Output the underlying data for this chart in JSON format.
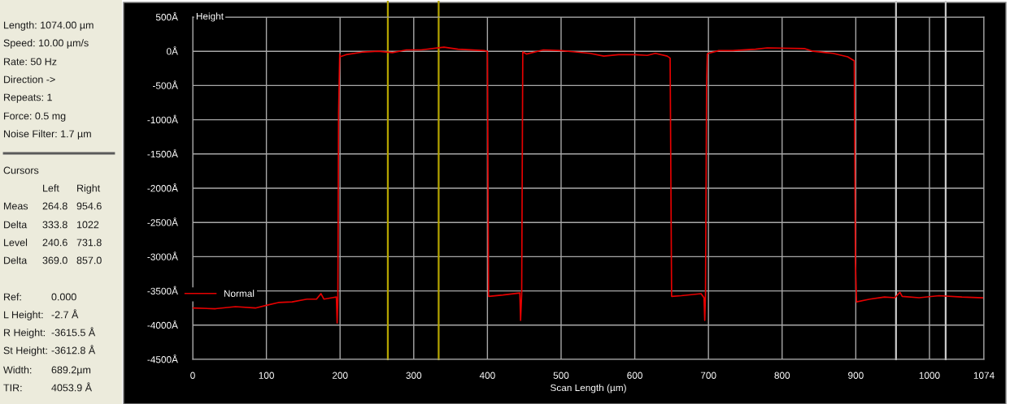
{
  "chart_data": {
    "type": "line",
    "xlabel": "Scan Length (µm)",
    "ylabel": "Height",
    "series": [
      {
        "name": "Normal",
        "color": "#e60000",
        "x": [
          0,
          31,
          58,
          85,
          100,
          116,
          135,
          155,
          168,
          174,
          178,
          189,
          195,
          196,
          197,
          198,
          199.5,
          200,
          208,
          232,
          252,
          271,
          290,
          310,
          341,
          360,
          396,
          400,
          401.5,
          421,
          444,
          445,
          446.5,
          448,
          453,
          476,
          500,
          519,
          539,
          558,
          578,
          600,
          617,
          628,
          644,
          648,
          650,
          663,
          690,
          694,
          695,
          696,
          697.5,
          698.5,
          700,
          714,
          733,
          764,
          780,
          830,
          842,
          869,
          889,
          898,
          899.5,
          901,
          919,
          939,
          953,
          960,
          963,
          986,
          1013,
          1044,
          1072
        ],
        "values": [
          -3750,
          -3760,
          -3730,
          -3750,
          -3710,
          -3670,
          -3660,
          -3620,
          -3620,
          -3540,
          -3620,
          -3600,
          -3590,
          -3970,
          -3620,
          -900,
          -40,
          -80,
          -50,
          -10,
          0,
          -20,
          20,
          20,
          60,
          30,
          10,
          0,
          -3580,
          -3560,
          -3530,
          -3930,
          -3550,
          -10,
          -40,
          20,
          10,
          -10,
          -30,
          -70,
          -50,
          -50,
          -60,
          -30,
          -70,
          -100,
          -3580,
          -3570,
          -3540,
          -3600,
          -3930,
          -3550,
          -500,
          -40,
          -30,
          10,
          10,
          30,
          50,
          40,
          0,
          -30,
          -80,
          -140,
          -3090,
          -3660,
          -3620,
          -3590,
          -3600,
          -3520,
          -3580,
          -3600,
          -3570,
          -3590,
          -3600
        ]
      }
    ],
    "xlim": [
      0,
      1074
    ],
    "xticks": [
      0,
      100,
      200,
      300,
      400,
      500,
      600,
      700,
      800,
      900,
      1000,
      1074
    ],
    "ylim": [
      -4500,
      500
    ],
    "yticks": [
      {
        "value": 500,
        "label": "500Å"
      },
      {
        "value": 0,
        "label": "0Å"
      },
      {
        "value": -500,
        "label": "-500Å"
      },
      {
        "value": -1000,
        "label": "-1000Å"
      },
      {
        "value": -1500,
        "label": "-1500Å"
      },
      {
        "value": -2000,
        "label": "-2000Å"
      },
      {
        "value": -2500,
        "label": "-2500Å"
      },
      {
        "value": -3000,
        "label": "-3000Å"
      },
      {
        "value": -3500,
        "label": "-3500Å"
      },
      {
        "value": -4000,
        "label": "-4000Å"
      },
      {
        "value": -4500,
        "label": "-4500Å"
      }
    ],
    "ref_lines": [
      {
        "axis": "x",
        "value": 264.8,
        "color": "#b4a400"
      },
      {
        "axis": "x",
        "value": 333.8,
        "color": "#b4a400"
      },
      {
        "axis": "x",
        "value": 954.6,
        "color": "#c8c8c8"
      },
      {
        "axis": "x",
        "value": 1022,
        "color": "#c8c8c8"
      }
    ],
    "grid": true,
    "legend": "bottom left",
    "annotations": [
      "Length: 1074.00 µm",
      "Speed: 10.00 µm/s",
      "Rate: 50 Hz",
      "Direction ->",
      "Repeats: 1",
      "Force: 0.5 mg",
      "Noise Filter: 1.7 µm",
      "Cursors",
      "\tLeft\tRight",
      "Meas\t264.8\t954.6",
      "Delta\t333.8\t1022",
      "Level\t240.6\t731.8",
      "Delta\t369.0\t857.0",
      "Ref:\t0.000",
      "L Height:\t-2.7 Å",
      "R Height:\t-3615.5 Å",
      "St Height:\t-3612.8 Å",
      "Width:\t689.2µm",
      "TIR:\t4053.9 Å"
    ]
  }
}
